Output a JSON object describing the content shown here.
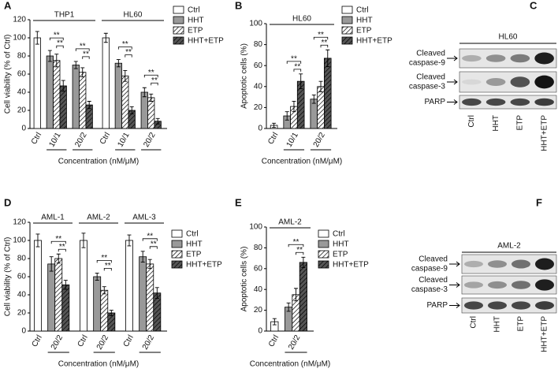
{
  "chart_data": [
    {
      "type": "bar",
      "panel": "A",
      "groups": [
        "THP1",
        "HL60"
      ],
      "categories": [
        "Ctrl",
        "10/1",
        "20/2",
        "Ctrl",
        "10/1",
        "20/2"
      ],
      "series": [
        {
          "name": "Ctrl",
          "color": "#ffffff",
          "hatch": false,
          "values": [
            100,
            null,
            null,
            100,
            null,
            null
          ],
          "errors": [
            7,
            null,
            null,
            5,
            null,
            null
          ]
        },
        {
          "name": "HHT",
          "color": "#999999",
          "hatch": false,
          "values": [
            null,
            80,
            70,
            null,
            72,
            40
          ],
          "errors": [
            null,
            6,
            4,
            null,
            4,
            5
          ]
        },
        {
          "name": "ETP",
          "color": "#ffffff",
          "hatch": true,
          "values": [
            null,
            75,
            62,
            null,
            58,
            34
          ],
          "errors": [
            null,
            7,
            5,
            null,
            6,
            4
          ]
        },
        {
          "name": "HHT+ETP",
          "color": "#555555",
          "hatch": true,
          "values": [
            null,
            47,
            26,
            null,
            20,
            8
          ],
          "errors": [
            null,
            6,
            4,
            null,
            4,
            3
          ]
        }
      ],
      "annotations": [
        "**",
        "**",
        "**",
        "**",
        "**",
        "**",
        "**",
        "**"
      ],
      "ylim": [
        0,
        120
      ],
      "yticks": [
        0,
        20,
        40,
        60,
        80,
        100,
        120
      ],
      "ylabel": "Cell viability (% of Ctrl)",
      "xlabel": "Concentration (nM/μM)"
    },
    {
      "type": "bar",
      "panel": "B",
      "groups": [
        "HL60"
      ],
      "categories": [
        "Ctrl",
        "10/1",
        "20/2"
      ],
      "series": [
        {
          "name": "Ctrl",
          "color": "#ffffff",
          "hatch": false,
          "values": [
            3,
            null,
            null
          ],
          "errors": [
            2,
            null,
            null
          ]
        },
        {
          "name": "HHT",
          "color": "#999999",
          "hatch": false,
          "values": [
            null,
            12,
            28
          ],
          "errors": [
            null,
            4,
            4
          ]
        },
        {
          "name": "ETP",
          "color": "#ffffff",
          "hatch": true,
          "values": [
            null,
            21,
            40
          ],
          "errors": [
            null,
            5,
            5
          ]
        },
        {
          "name": "HHT+ETP",
          "color": "#555555",
          "hatch": true,
          "values": [
            null,
            45,
            67
          ],
          "errors": [
            null,
            7,
            8
          ]
        }
      ],
      "annotations": [
        "**",
        "**",
        "**",
        "**"
      ],
      "ylim": [
        0,
        100
      ],
      "yticks": [
        0,
        20,
        40,
        60,
        80,
        100
      ],
      "ylabel": "Apoptotic cells (%)",
      "xlabel": "Concentration (nM/μM)"
    },
    {
      "type": "bar",
      "panel": "D",
      "groups": [
        "AML-1",
        "AML-2",
        "AML-3"
      ],
      "categories": [
        "Ctrl",
        "20/2",
        "Ctrl",
        "20/2",
        "Ctrl",
        "20/2"
      ],
      "series": [
        {
          "name": "Ctrl",
          "color": "#ffffff",
          "hatch": false,
          "values": [
            100,
            null,
            100,
            null,
            100,
            null
          ],
          "errors": [
            7,
            null,
            8,
            null,
            6,
            null
          ]
        },
        {
          "name": "HHT",
          "color": "#999999",
          "hatch": false,
          "values": [
            null,
            74,
            null,
            60,
            null,
            82
          ],
          "errors": [
            null,
            8,
            null,
            4,
            null,
            6
          ]
        },
        {
          "name": "ETP",
          "color": "#ffffff",
          "hatch": true,
          "values": [
            null,
            80,
            null,
            45,
            null,
            74
          ],
          "errors": [
            null,
            5,
            null,
            4,
            null,
            5
          ]
        },
        {
          "name": "HHT+ETP",
          "color": "#555555",
          "hatch": true,
          "values": [
            null,
            51,
            null,
            20,
            null,
            42
          ],
          "errors": [
            null,
            5,
            null,
            3,
            null,
            6
          ]
        }
      ],
      "annotations": [
        "**",
        "**",
        "**",
        "**",
        "**",
        "**"
      ],
      "ylim": [
        0,
        120
      ],
      "yticks": [
        0,
        20,
        40,
        60,
        80,
        100,
        120
      ],
      "ylabel": "Cell viability (% of Ctrl)",
      "xlabel": "Concentration (nM/μM)"
    },
    {
      "type": "bar",
      "panel": "E",
      "groups": [
        "AML-2"
      ],
      "categories": [
        "Ctrl",
        "20/2"
      ],
      "series": [
        {
          "name": "Ctrl",
          "color": "#ffffff",
          "hatch": false,
          "values": [
            9,
            null
          ],
          "errors": [
            3,
            null
          ]
        },
        {
          "name": "HHT",
          "color": "#999999",
          "hatch": false,
          "values": [
            null,
            23
          ],
          "errors": [
            null,
            4
          ]
        },
        {
          "name": "ETP",
          "color": "#ffffff",
          "hatch": true,
          "values": [
            null,
            35
          ],
          "errors": [
            null,
            6
          ]
        },
        {
          "name": "HHT+ETP",
          "color": "#555555",
          "hatch": true,
          "values": [
            null,
            66
          ],
          "errors": [
            null,
            5
          ]
        }
      ],
      "annotations": [
        "**",
        "**"
      ],
      "ylim": [
        0,
        100
      ],
      "yticks": [
        0,
        20,
        40,
        60,
        80,
        100
      ],
      "ylabel": "Apoptotic cells (%)",
      "xlabel": "Concentration (nM/μM)"
    }
  ],
  "blots": [
    {
      "panel": "C",
      "title": "HL60",
      "lanes": [
        "Ctrl",
        "HHT",
        "ETP",
        "HHT+ETP"
      ],
      "rows": [
        [
          "Cleaved",
          "caspase-9"
        ],
        [
          "Cleaved",
          "caspase-3"
        ],
        [
          "PARP"
        ]
      ]
    },
    {
      "panel": "F",
      "title": "AML-2",
      "lanes": [
        "Ctrl",
        "HHT",
        "ETP",
        "HHT+ETP"
      ],
      "rows": [
        [
          "Cleaved",
          "caspase-9"
        ],
        [
          "Cleaved",
          "caspase-3"
        ],
        [
          "PARP"
        ]
      ]
    }
  ]
}
